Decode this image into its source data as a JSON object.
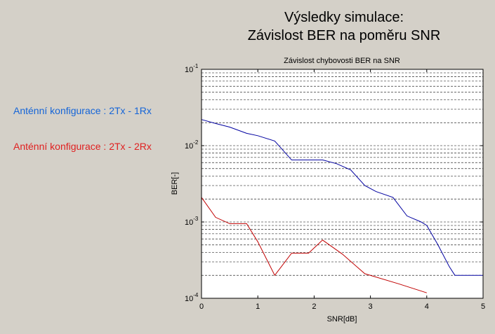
{
  "window": {
    "title_line1": "Výsledky simulace:",
    "title_line2": "Závislost BER na poměru SNR",
    "background_color": "#d4d0c8"
  },
  "legend": {
    "items": [
      {
        "label": "Anténní konfigurace : 2Tx - 1Rx",
        "color": "#1565d8"
      },
      {
        "label": "Anténní konfigurace : 2Tx - 2Rx",
        "color": "#e02020"
      }
    ]
  },
  "chart_data": {
    "type": "line",
    "title": "Závislost chybovosti BER na SNR",
    "xlabel": "SNR[dB]",
    "ylabel": "BER[-]",
    "xlim": [
      0,
      5
    ],
    "ylim": [
      0.0001,
      0.1
    ],
    "yscale": "log",
    "grid": "y-dashed",
    "x_ticks": [
      "0",
      "1",
      "2",
      "3",
      "4",
      "5"
    ],
    "y_ticks": [
      {
        "base": "10",
        "exp": "-1"
      },
      {
        "base": "10",
        "exp": "-2"
      },
      {
        "base": "10",
        "exp": "-3"
      },
      {
        "base": "10",
        "exp": "-4"
      }
    ],
    "series": [
      {
        "color": "#0000a0",
        "x": [
          0,
          0.25,
          0.5,
          0.8,
          1.0,
          1.3,
          1.6,
          2.0,
          2.15,
          2.4,
          2.65,
          2.9,
          3.1,
          3.4,
          3.65,
          3.9,
          4.0,
          4.2,
          4.4,
          4.5,
          5.0
        ],
        "y": [
          0.022,
          0.0195,
          0.0175,
          0.0145,
          0.0135,
          0.0115,
          0.0065,
          0.0065,
          0.0065,
          0.0058,
          0.0048,
          0.003,
          0.0025,
          0.0021,
          0.0012,
          0.001,
          0.0009,
          0.0005,
          0.00026,
          0.0002,
          0.0002
        ]
      },
      {
        "color": "#c00000",
        "x": [
          0,
          0.25,
          0.5,
          0.8,
          1.0,
          1.3,
          1.6,
          1.9,
          2.15,
          2.5,
          2.9,
          3.5,
          4.0
        ],
        "y": [
          0.0021,
          0.00115,
          0.00095,
          0.00095,
          0.00055,
          0.0002,
          0.00039,
          0.00039,
          0.00058,
          0.00038,
          0.00021,
          0.000155,
          0.000118
        ]
      }
    ]
  }
}
